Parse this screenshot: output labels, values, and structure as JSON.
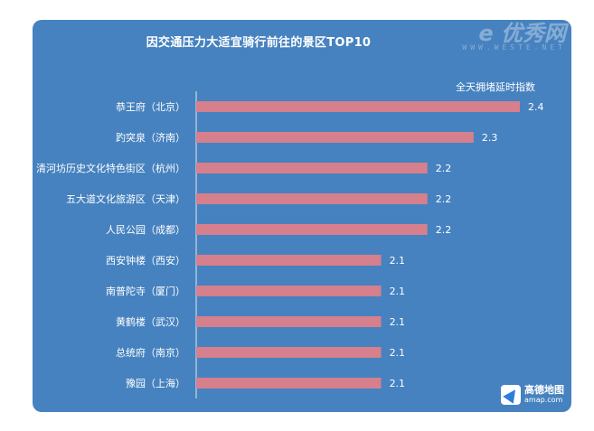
{
  "chart_data": {
    "type": "bar",
    "orientation": "horizontal",
    "title": "因交通压力大适宜骑行前往的景区TOP10",
    "series_label": "全天拥堵延时指数",
    "categories": [
      "恭王府（北京）",
      "趵突泉（济南）",
      "清河坊历史文化特色街区（杭州）",
      "五大道文化旅游区（天津）",
      "人民公园（成都）",
      "西安钟楼（西安）",
      "南普陀寺（厦门）",
      "黄鹤楼（武汉）",
      "总统府（南京）",
      "豫园（上海）"
    ],
    "values": [
      2.4,
      2.3,
      2.2,
      2.2,
      2.2,
      2.1,
      2.1,
      2.1,
      2.1,
      2.1
    ],
    "value_labels": [
      "2.4",
      "2.3",
      "2.2",
      "2.2",
      "2.2",
      "2.1",
      "2.1",
      "2.1",
      "2.1",
      "2.1"
    ],
    "xlim": [
      1.7,
      2.4
    ],
    "bar_color": "#d67f8d"
  },
  "watermark": {
    "logo": "e 优秀网",
    "url": "WWW.WESTE.NET"
  },
  "source_logo": {
    "name": "高德地图",
    "url": "amap.com"
  },
  "colors": {
    "background": "#4682bf",
    "bar": "#d67f8d",
    "text": "#ffffff"
  }
}
